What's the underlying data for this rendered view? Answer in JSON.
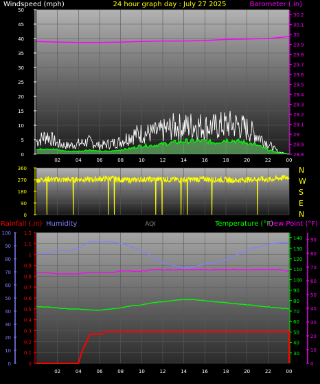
{
  "header": {
    "windspeed_label": "Windspeed (mph)",
    "title": "24 hour graph day : July 27 2025",
    "barometer_label": "Barometer (.in)"
  },
  "colors": {
    "windspeed": "#ffffff",
    "gust": "#ffffff",
    "wind_avg": "#00ff00",
    "barometer": "#ff00ff",
    "direction": "#ffff00",
    "rainfall": "#ff0000",
    "humidity": "#8080ff",
    "temperature": "#00ff00",
    "dewpoint": "#ff00ff",
    "aqi": "#888888"
  },
  "bottom_labels": {
    "rainfall": "Rainfall (.in)",
    "humidity": "Humidity",
    "aqi": "AQI",
    "temperature": "Temperature (°F)",
    "dewpoint": "Dew Point (°F)"
  },
  "compass_labels": [
    "N",
    "W",
    "S",
    "E",
    "N"
  ],
  "chart_data": [
    {
      "type": "area",
      "name": "wind-barometer",
      "x_ticks": [
        "02",
        "04",
        "06",
        "08",
        "10",
        "12",
        "14",
        "16",
        "18",
        "20",
        "22",
        "00"
      ],
      "left_axis": {
        "label": "Windspeed (mph)",
        "ticks": [
          0,
          5,
          10,
          15,
          20,
          25,
          30,
          35,
          40,
          45,
          50
        ],
        "range": [
          0,
          50
        ]
      },
      "right_axis": {
        "label": "Barometer (.in)",
        "ticks": [
          28.8,
          28.9,
          29.0,
          29.1,
          29.2,
          29.3,
          29.4,
          29.5,
          29.6,
          29.7,
          29.8,
          29.9,
          30.0,
          30.1,
          30.2
        ],
        "tick_labels": [
          "28.8",
          "28.9",
          "29",
          "29.1",
          "29.2",
          "29.3",
          "29.4",
          "29.5",
          "29.6",
          "29.7",
          "29.8",
          "29.9",
          "30",
          "30.1",
          "30.2"
        ],
        "range": [
          28.8,
          30.25
        ]
      },
      "series": [
        {
          "name": "Barometer",
          "axis": "right",
          "x": [
            0,
            2,
            4,
            6,
            8,
            10,
            12,
            14,
            16,
            18,
            20,
            22,
            23,
            24
          ],
          "values": [
            29.93,
            29.925,
            29.92,
            29.92,
            29.925,
            29.93,
            29.935,
            29.935,
            29.94,
            29.95,
            29.955,
            29.96,
            29.97,
            29.98
          ]
        },
        {
          "name": "Gust",
          "axis": "left",
          "x": [
            0,
            1,
            2,
            3,
            4,
            5,
            6,
            7,
            8,
            9,
            10,
            11,
            12,
            13,
            14,
            15,
            16,
            17,
            18,
            19,
            20,
            21,
            22,
            23,
            24
          ],
          "values": [
            6,
            9,
            5,
            4,
            5,
            6,
            4,
            5,
            6,
            9,
            10,
            10,
            11,
            13,
            13,
            14,
            13,
            13,
            14,
            14,
            12,
            9,
            5,
            1,
            0
          ]
        },
        {
          "name": "Wind Avg",
          "axis": "left",
          "x": [
            0,
            1,
            2,
            3,
            4,
            5,
            6,
            7,
            8,
            9,
            10,
            11,
            12,
            13,
            14,
            15,
            16,
            17,
            18,
            19,
            20,
            21,
            22,
            23,
            24
          ],
          "values": [
            1.5,
            2,
            1.5,
            1,
            1,
            1.5,
            1,
            1,
            1.5,
            2,
            3,
            3,
            3.5,
            4,
            4.5,
            4.5,
            4.5,
            4,
            5,
            4.5,
            4,
            3,
            1.5,
            0.5,
            0
          ]
        }
      ]
    },
    {
      "type": "line",
      "name": "wind-direction",
      "x_ticks": [],
      "left_axis": {
        "ticks": [
          0,
          90,
          180,
          270,
          360
        ],
        "range": [
          0,
          360
        ]
      },
      "series": [
        {
          "name": "Wind Direction",
          "x": [
            0,
            1,
            2,
            3,
            4,
            5,
            6,
            7,
            8,
            9,
            10,
            11,
            12,
            13,
            14,
            15,
            16,
            17,
            18,
            19,
            20,
            21,
            22,
            23,
            24
          ],
          "values": [
            265,
            275,
            270,
            268,
            272,
            270,
            275,
            280,
            270,
            265,
            272,
            270,
            275,
            270,
            268,
            272,
            275,
            270,
            268,
            265,
            270,
            275,
            270,
            280,
            290
          ]
        }
      ]
    },
    {
      "type": "line",
      "name": "rain-humidity-temp",
      "x_ticks": [
        "02",
        "04",
        "06",
        "08",
        "10",
        "12",
        "14",
        "16",
        "18",
        "20",
        "22",
        "00"
      ],
      "rain_axis": {
        "ticks": [
          0,
          0.1,
          0.2,
          0.3,
          0.4,
          0.5,
          0.6,
          0.7,
          0.8,
          0.9,
          1,
          1.1,
          1.2
        ],
        "tick_labels": [
          "0",
          "0.1",
          "0.2",
          "0.3",
          "0.4",
          "0.5",
          "0.6",
          "0.7",
          "0.8",
          "0.9",
          "1",
          "1.1",
          "1.2"
        ],
        "range": [
          0,
          1.2
        ]
      },
      "humidity_axis": {
        "ticks": [
          0,
          10,
          20,
          30,
          40,
          50,
          60,
          70,
          80,
          90,
          100
        ],
        "range": [
          0,
          100
        ]
      },
      "temp_axis": {
        "ticks": [
          30,
          40,
          50,
          60,
          70,
          80,
          90,
          100,
          110,
          120,
          130,
          140
        ],
        "range": [
          20,
          145
        ]
      },
      "dew_axis": {
        "ticks": [
          0,
          10,
          20,
          30,
          40,
          50,
          60,
          70,
          80,
          90
        ],
        "range": [
          0,
          95
        ]
      },
      "series": [
        {
          "name": "Humidity",
          "axis": "humidity",
          "x": [
            0,
            1,
            2,
            3,
            4,
            5,
            6,
            7,
            8,
            9,
            10,
            11,
            12,
            13,
            14,
            15,
            16,
            17,
            18,
            19,
            20,
            21,
            22,
            23,
            24
          ],
          "values": [
            85,
            84,
            87,
            86,
            88,
            93,
            93,
            93,
            92,
            89,
            86,
            82,
            77,
            75,
            73,
            74,
            76,
            77,
            79,
            83,
            86,
            89,
            91,
            92,
            93
          ]
        },
        {
          "name": "Temperature",
          "axis": "temp",
          "x": [
            0,
            1,
            2,
            3,
            4,
            5,
            6,
            7,
            8,
            9,
            10,
            11,
            12,
            13,
            14,
            15,
            16,
            17,
            18,
            19,
            20,
            21,
            22,
            23,
            24
          ],
          "values": [
            74,
            74,
            73,
            72,
            72,
            71,
            71,
            72,
            73,
            75,
            76,
            78,
            79,
            80,
            81,
            81,
            80,
            79,
            78,
            77,
            76,
            75,
            74,
            73,
            72
          ]
        },
        {
          "name": "Dew Point",
          "axis": "dew",
          "x": [
            0,
            1,
            2,
            3,
            4,
            5,
            6,
            7,
            8,
            9,
            10,
            11,
            12,
            13,
            14,
            15,
            16,
            17,
            18,
            19,
            20,
            21,
            22,
            23,
            24
          ],
          "values": [
            66,
            66,
            65,
            65,
            65,
            66,
            66,
            66,
            67,
            67,
            67,
            68,
            68,
            68,
            68,
            68,
            68,
            68,
            68,
            68,
            68,
            68,
            68,
            68,
            67
          ]
        },
        {
          "name": "Rainfall",
          "axis": "rain",
          "x": [
            0,
            3.5,
            4.0,
            4.3,
            5.0,
            5.2,
            6.3,
            6.5,
            14,
            24,
            24.01
          ],
          "values": [
            0,
            0,
            0,
            0.1,
            0.25,
            0.27,
            0.27,
            0.29,
            0.29,
            0.29,
            0
          ]
        }
      ]
    }
  ]
}
